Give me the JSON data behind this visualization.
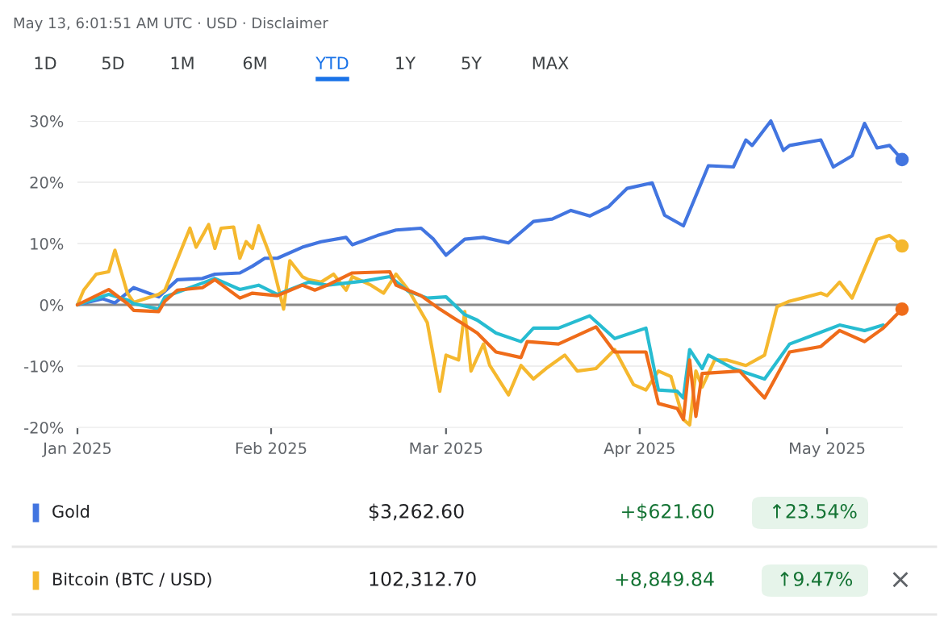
{
  "chart_data": {
    "type": "line",
    "annotations": [
      "May 13, 6:01:51 AM UTC · USD · Disclaimer",
      "1D",
      "5D",
      "1M",
      "6M",
      "YTD",
      "1Y",
      "5Y",
      "MAX",
      "$3,262.60",
      "+$621.60",
      "↑23.54%",
      "102,312.70",
      "+8,849.84",
      "↑9.47%",
      "×"
    ],
    "xlim": [
      "2025-01-01",
      "2025-05-13"
    ],
    "xticks": [
      {
        "value": "2025-01-01",
        "label": "Jan 2025"
      },
      {
        "value": "2025-02-01",
        "label": "Feb 2025"
      },
      {
        "value": "2025-03-01",
        "label": "Mar 2025"
      },
      {
        "value": "2025-04-01",
        "label": "Apr 2025"
      },
      {
        "value": "2025-05-01",
        "label": "May 2025"
      }
    ],
    "ylim": [
      -20,
      30
    ],
    "yticks": [
      {
        "value": -20,
        "label": "-20%"
      },
      {
        "value": -10,
        "label": "-10%"
      },
      {
        "value": 0,
        "label": "0%"
      },
      {
        "value": 10,
        "label": "10%"
      },
      {
        "value": 20,
        "label": "20%"
      },
      {
        "value": 30,
        "label": "30%"
      }
    ],
    "grid": "y",
    "legend": "bottom",
    "ref_lines": [
      {
        "axis": "y",
        "value": 0,
        "color": "#8a8a8a"
      }
    ],
    "series": [
      {
        "name": "Gold",
        "color": "#4275e0",
        "x": [
          "2025-01-01",
          "2025-01-05",
          "2025-01-07",
          "2025-01-10",
          "2025-01-14",
          "2025-01-17",
          "2025-01-21",
          "2025-01-23",
          "2025-01-27",
          "2025-01-29",
          "2025-01-31",
          "2025-02-02",
          "2025-02-06",
          "2025-02-09",
          "2025-02-13",
          "2025-02-14",
          "2025-02-18",
          "2025-02-21",
          "2025-02-25",
          "2025-02-27",
          "2025-03-01",
          "2025-03-04",
          "2025-03-07",
          "2025-03-11",
          "2025-03-15",
          "2025-03-18",
          "2025-03-21",
          "2025-03-24",
          "2025-03-27",
          "2025-03-30",
          "2025-04-03",
          "2025-04-05",
          "2025-04-08",
          "2025-04-12",
          "2025-04-16",
          "2025-04-18",
          "2025-04-19",
          "2025-04-22",
          "2025-04-24",
          "2025-04-25",
          "2025-04-30",
          "2025-05-02",
          "2025-05-05",
          "2025-05-07",
          "2025-05-09",
          "2025-05-11",
          "2025-05-13"
        ],
        "values": [
          0,
          1.0,
          0.3,
          2.8,
          1.3,
          4.1,
          4.3,
          5.0,
          5.2,
          6.3,
          7.6,
          7.6,
          9.4,
          10.3,
          11.0,
          9.8,
          11.3,
          12.2,
          12.5,
          10.7,
          8.1,
          10.7,
          11.0,
          10.1,
          13.6,
          14.0,
          15.4,
          14.5,
          16.0,
          19.0,
          19.9,
          14.6,
          12.9,
          22.7,
          22.5,
          26.9,
          26.0,
          30.0,
          25.2,
          26.0,
          26.9,
          22.5,
          24.3,
          29.6,
          25.6,
          26.0,
          23.7
        ]
      },
      {
        "name": "Bitcoin (BTC / USD)",
        "color": "#f5b82e",
        "x": [
          "2025-01-01",
          "2025-01-02",
          "2025-01-04",
          "2025-01-06",
          "2025-01-07",
          "2025-01-09",
          "2025-01-10",
          "2025-01-14",
          "2025-01-15",
          "2025-01-19",
          "2025-01-20",
          "2025-01-22",
          "2025-01-23",
          "2025-01-24",
          "2025-01-26",
          "2025-01-27",
          "2025-01-28",
          "2025-01-29",
          "2025-01-30",
          "2025-02-01",
          "2025-02-03",
          "2025-02-04",
          "2025-02-06",
          "2025-02-07",
          "2025-02-09",
          "2025-02-11",
          "2025-02-13",
          "2025-02-14",
          "2025-02-17",
          "2025-02-19",
          "2025-02-21",
          "2025-02-23",
          "2025-02-26",
          "2025-02-28",
          "2025-03-01",
          "2025-03-03",
          "2025-03-04",
          "2025-03-05",
          "2025-03-07",
          "2025-03-08",
          "2025-03-11",
          "2025-03-13",
          "2025-03-15",
          "2025-03-17",
          "2025-03-20",
          "2025-03-22",
          "2025-03-25",
          "2025-03-28",
          "2025-03-31",
          "2025-04-02",
          "2025-04-04",
          "2025-04-06",
          "2025-04-08",
          "2025-04-09",
          "2025-04-10",
          "2025-04-11",
          "2025-04-13",
          "2025-04-15",
          "2025-04-18",
          "2025-04-21",
          "2025-04-23",
          "2025-04-25",
          "2025-04-27",
          "2025-04-30",
          "2025-05-01",
          "2025-05-03",
          "2025-05-05",
          "2025-05-09",
          "2025-05-11",
          "2025-05-13"
        ],
        "values": [
          0,
          2.4,
          5.0,
          5.4,
          8.9,
          1.9,
          0.4,
          1.7,
          2.4,
          12.5,
          9.4,
          13.1,
          9.2,
          12.5,
          12.7,
          7.6,
          10.3,
          9.2,
          12.9,
          7.6,
          -0.7,
          7.2,
          4.6,
          4.1,
          3.7,
          5.0,
          2.4,
          4.6,
          3.2,
          1.9,
          5.0,
          2.4,
          -2.9,
          -14.1,
          -8.2,
          -9.0,
          -1.1,
          -10.8,
          -6.4,
          -9.9,
          -14.7,
          -9.9,
          -12.1,
          -10.4,
          -8.2,
          -10.8,
          -10.4,
          -7.3,
          -13.0,
          -13.9,
          -10.8,
          -11.7,
          -18.7,
          -19.6,
          -10.8,
          -13.4,
          -9.0,
          -9.0,
          -9.9,
          -8.2,
          -0.3,
          0.6,
          1.1,
          1.9,
          1.5,
          3.7,
          1.1,
          10.7,
          11.3,
          9.6
        ]
      },
      {
        "color": "#27bcd1",
        "x": [
          "2025-01-01",
          "2025-01-06",
          "2025-01-09",
          "2025-01-10",
          "2025-01-14",
          "2025-01-15",
          "2025-01-19",
          "2025-01-23",
          "2025-01-27",
          "2025-01-30",
          "2025-02-02",
          "2025-02-07",
          "2025-02-10",
          "2025-02-16",
          "2025-02-20",
          "2025-02-23",
          "2025-02-26",
          "2025-03-01",
          "2025-03-04",
          "2025-03-06",
          "2025-03-09",
          "2025-03-13",
          "2025-03-15",
          "2025-03-19",
          "2025-03-24",
          "2025-03-28",
          "2025-04-02",
          "2025-04-04",
          "2025-04-07",
          "2025-04-08",
          "2025-04-09",
          "2025-04-11",
          "2025-04-12",
          "2025-04-16",
          "2025-04-21",
          "2025-04-25",
          "2025-05-03",
          "2025-05-07",
          "2025-05-10"
        ],
        "values": [
          0,
          1.7,
          0.8,
          0.2,
          -0.7,
          1.3,
          2.8,
          4.3,
          2.5,
          3.2,
          1.7,
          3.7,
          3.2,
          3.9,
          4.6,
          2.2,
          1.1,
          1.3,
          -1.6,
          -2.5,
          -4.6,
          -6.0,
          -3.8,
          -3.8,
          -1.8,
          -5.5,
          -3.8,
          -13.9,
          -14.1,
          -15.2,
          -7.3,
          -10.4,
          -8.2,
          -10.4,
          -12.1,
          -6.4,
          -3.3,
          -4.2,
          -3.3
        ]
      },
      {
        "color": "#ef6c1a",
        "x": [
          "2025-01-01",
          "2025-01-06",
          "2025-01-09",
          "2025-01-10",
          "2025-01-14",
          "2025-01-15",
          "2025-01-17",
          "2025-01-21",
          "2025-01-23",
          "2025-01-27",
          "2025-01-29",
          "2025-02-02",
          "2025-02-06",
          "2025-02-08",
          "2025-02-10",
          "2025-02-14",
          "2025-02-20",
          "2025-02-21",
          "2025-02-25",
          "2025-02-28",
          "2025-03-02",
          "2025-03-04",
          "2025-03-06",
          "2025-03-09",
          "2025-03-13",
          "2025-03-14",
          "2025-03-19",
          "2025-03-25",
          "2025-03-28",
          "2025-04-02",
          "2025-04-04",
          "2025-04-07",
          "2025-04-08",
          "2025-04-09",
          "2025-04-10",
          "2025-04-11",
          "2025-04-17",
          "2025-04-21",
          "2025-04-25",
          "2025-04-30",
          "2025-05-03",
          "2025-05-07",
          "2025-05-10",
          "2025-05-13"
        ],
        "values": [
          0,
          2.5,
          0.2,
          -0.9,
          -1.1,
          0.6,
          2.4,
          2.8,
          4.1,
          1.1,
          1.9,
          1.5,
          3.2,
          2.4,
          3.2,
          5.2,
          5.4,
          3.2,
          1.5,
          -0.7,
          -2.0,
          -3.3,
          -4.6,
          -7.7,
          -8.6,
          -6.0,
          -6.4,
          -3.6,
          -7.7,
          -7.7,
          -16.1,
          -16.9,
          -18.7,
          -9.0,
          -18.2,
          -11.2,
          -10.8,
          -15.2,
          -7.7,
          -6.8,
          -4.2,
          -6.0,
          -3.8,
          -0.7
        ]
      }
    ]
  }
}
